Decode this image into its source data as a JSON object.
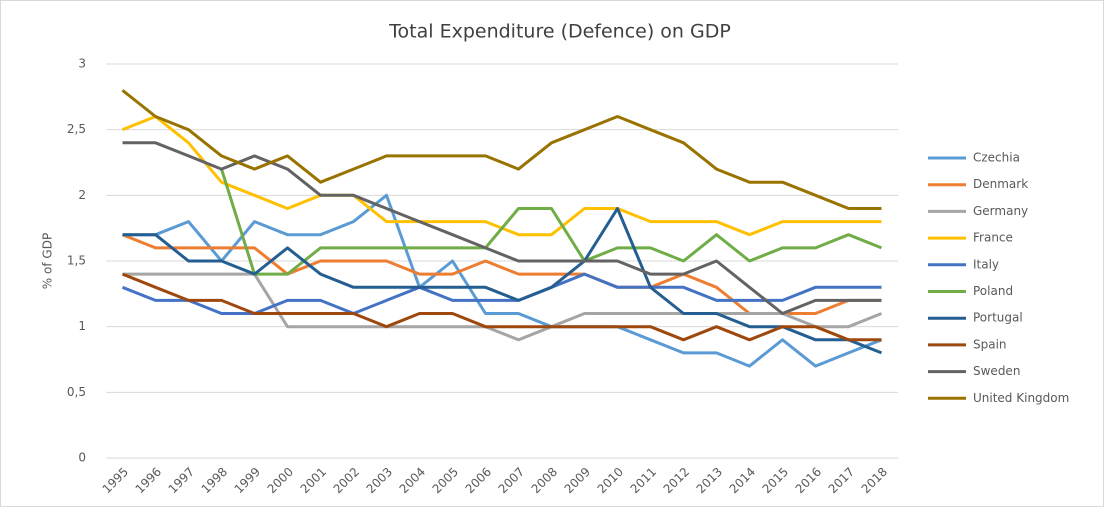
{
  "chart_data": {
    "type": "line",
    "title": "Total Expenditure (Defence) on GDP",
    "y_label": "% of GDP",
    "categories": [
      "1995",
      "1996",
      "1997",
      "1998",
      "1999",
      "2000",
      "2001",
      "2002",
      "2003",
      "2004",
      "2005",
      "2006",
      "2007",
      "2008",
      "2009",
      "2010",
      "2011",
      "2012",
      "2013",
      "2014",
      "2015",
      "2016",
      "2017",
      "2018"
    ],
    "ylim": [
      0,
      3
    ],
    "yticks": [
      0,
      {
        "value": 0.5,
        "label": "0,5"
      },
      1,
      {
        "value": 1.5,
        "label": "1,5"
      },
      2,
      {
        "value": 2.5,
        "label": "2,5"
      },
      3
    ],
    "grid": true,
    "legend": "right",
    "series": [
      {
        "name": "Czechia",
        "color": "#5b9bd5",
        "values": [
          1.7,
          1.7,
          1.8,
          1.5,
          1.8,
          1.7,
          1.7,
          1.8,
          2.0,
          1.3,
          1.5,
          1.1,
          1.1,
          1.0,
          1.0,
          1.0,
          0.9,
          0.8,
          0.8,
          0.7,
          0.9,
          0.7,
          0.8,
          0.9
        ]
      },
      {
        "name": "Denmark",
        "color": "#ed7d31",
        "values": [
          1.7,
          1.6,
          1.6,
          1.6,
          1.6,
          1.4,
          1.5,
          1.5,
          1.5,
          1.4,
          1.4,
          1.5,
          1.4,
          1.4,
          1.4,
          1.3,
          1.3,
          1.4,
          1.3,
          1.1,
          1.1,
          1.1,
          1.2,
          1.2
        ]
      },
      {
        "name": "Germany",
        "color": "#a5a5a5",
        "values": [
          1.4,
          1.4,
          1.4,
          1.4,
          1.4,
          1.0,
          1.0,
          1.0,
          1.0,
          1.0,
          1.0,
          1.0,
          0.9,
          1.0,
          1.1,
          1.1,
          1.1,
          1.1,
          1.1,
          1.1,
          1.1,
          1.0,
          1.0,
          1.1
        ]
      },
      {
        "name": "France",
        "color": "#ffc000",
        "values": [
          2.5,
          2.6,
          2.4,
          2.1,
          2.0,
          1.9,
          2.0,
          2.0,
          1.8,
          1.8,
          1.8,
          1.8,
          1.7,
          1.7,
          1.9,
          1.9,
          1.8,
          1.8,
          1.8,
          1.7,
          1.8,
          1.8,
          1.8,
          1.8
        ]
      },
      {
        "name": "Italy",
        "color": "#4472c4",
        "values": [
          1.3,
          1.2,
          1.2,
          1.1,
          1.1,
          1.2,
          1.2,
          1.1,
          1.2,
          1.3,
          1.2,
          1.2,
          1.2,
          1.3,
          1.4,
          1.3,
          1.3,
          1.3,
          1.2,
          1.2,
          1.2,
          1.3,
          1.3,
          1.3
        ]
      },
      {
        "name": "Poland",
        "color": "#70ad47",
        "values": [
          null,
          null,
          null,
          2.2,
          1.4,
          1.4,
          1.6,
          1.6,
          1.6,
          1.6,
          1.6,
          1.6,
          1.9,
          1.9,
          1.5,
          1.6,
          1.6,
          1.5,
          1.7,
          1.5,
          1.6,
          1.6,
          1.7,
          1.6
        ]
      },
      {
        "name": "Portugal",
        "color": "#255e91",
        "values": [
          1.7,
          1.7,
          1.5,
          1.5,
          1.4,
          1.6,
          1.4,
          1.3,
          1.3,
          1.3,
          1.3,
          1.3,
          1.2,
          1.3,
          1.5,
          1.9,
          1.3,
          1.1,
          1.1,
          1.0,
          1.0,
          0.9,
          0.9,
          0.8
        ]
      },
      {
        "name": "Spain",
        "color": "#9e480e",
        "values": [
          1.4,
          1.3,
          1.2,
          1.2,
          1.1,
          1.1,
          1.1,
          1.1,
          1.0,
          1.1,
          1.1,
          1.0,
          1.0,
          1.0,
          1.0,
          1.0,
          1.0,
          0.9,
          1.0,
          0.9,
          1.0,
          1.0,
          0.9,
          0.9
        ]
      },
      {
        "name": "Sweden",
        "color": "#636363",
        "values": [
          2.4,
          2.4,
          2.3,
          2.2,
          2.3,
          2.2,
          2.0,
          2.0,
          1.9,
          1.8,
          1.7,
          1.6,
          1.5,
          1.5,
          1.5,
          1.5,
          1.4,
          1.4,
          1.5,
          1.3,
          1.1,
          1.2,
          1.2,
          1.2
        ]
      },
      {
        "name": "United Kingdom",
        "color": "#997300",
        "values": [
          2.8,
          2.6,
          2.5,
          2.3,
          2.2,
          2.3,
          2.1,
          2.2,
          2.3,
          2.3,
          2.3,
          2.3,
          2.2,
          2.4,
          2.5,
          2.6,
          2.5,
          2.4,
          2.2,
          2.1,
          2.1,
          2.0,
          1.9,
          1.9
        ]
      }
    ]
  }
}
